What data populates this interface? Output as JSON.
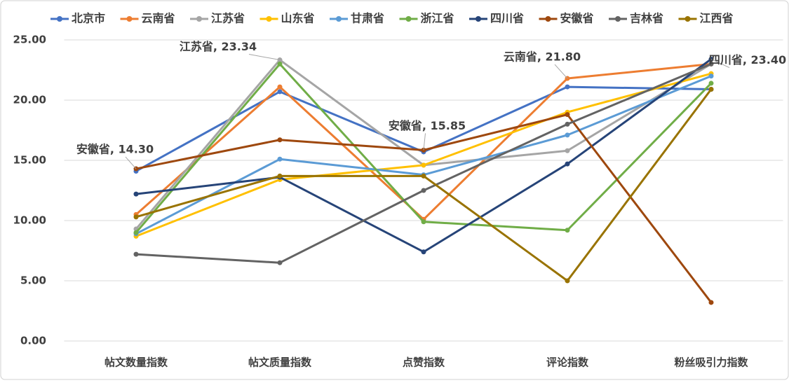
{
  "chart_data": {
    "type": "line",
    "categories": [
      "帖文数量指数",
      "帖文质量指数",
      "点赞指数",
      "评论指数",
      "粉丝吸引力指数"
    ],
    "ylim": [
      0,
      25
    ],
    "yticks": [
      {
        "value": 0,
        "label": "0.00"
      },
      {
        "value": 5,
        "label": "5.00"
      },
      {
        "value": 10,
        "label": "10.00"
      },
      {
        "value": 15,
        "label": "15.00"
      },
      {
        "value": 20,
        "label": "20.00"
      },
      {
        "value": 25,
        "label": "25.00"
      }
    ],
    "grid": true,
    "legend": "top",
    "series": [
      {
        "name": "北京市",
        "color": "#4472c4",
        "values": [
          14.1,
          20.7,
          15.7,
          21.1,
          20.9
        ]
      },
      {
        "name": "云南省",
        "color": "#ed7d31",
        "values": [
          10.5,
          21.1,
          10.1,
          21.8,
          23.0
        ],
        "value_labels": [
          null,
          null,
          null,
          "云南省, 21.80",
          null
        ]
      },
      {
        "name": "江苏省",
        "color": "#a5a5a5",
        "values": [
          9.3,
          23.34,
          14.6,
          15.8,
          23.0
        ],
        "value_labels": [
          null,
          "江苏省, 23.34",
          null,
          null,
          null
        ]
      },
      {
        "name": "山东省",
        "color": "#ffc000",
        "values": [
          8.7,
          13.4,
          14.6,
          19.0,
          22.2
        ]
      },
      {
        "name": "甘肃省",
        "color": "#5b9bd5",
        "values": [
          8.9,
          15.1,
          13.8,
          17.1,
          22.0
        ]
      },
      {
        "name": "浙江省",
        "color": "#70ad47",
        "values": [
          9.0,
          23.0,
          9.9,
          9.2,
          21.4
        ]
      },
      {
        "name": "四川省",
        "color": "#264478",
        "values": [
          12.2,
          13.6,
          7.4,
          14.7,
          23.4
        ],
        "value_labels": [
          null,
          null,
          null,
          null,
          "四川省, 23.40"
        ]
      },
      {
        "name": "安徽省",
        "color": "#9e480e",
        "values": [
          14.3,
          16.7,
          15.85,
          18.8,
          3.2
        ],
        "value_labels": [
          "安徽省, 14.30",
          null,
          "安徽省, 15.85",
          null,
          null
        ]
      },
      {
        "name": "吉林省",
        "color": "#636363",
        "values": [
          7.2,
          6.5,
          12.5,
          18.0,
          23.0
        ]
      },
      {
        "name": "江西省",
        "color": "#997300",
        "values": [
          10.3,
          13.7,
          13.7,
          5.0,
          20.9
        ]
      }
    ]
  }
}
